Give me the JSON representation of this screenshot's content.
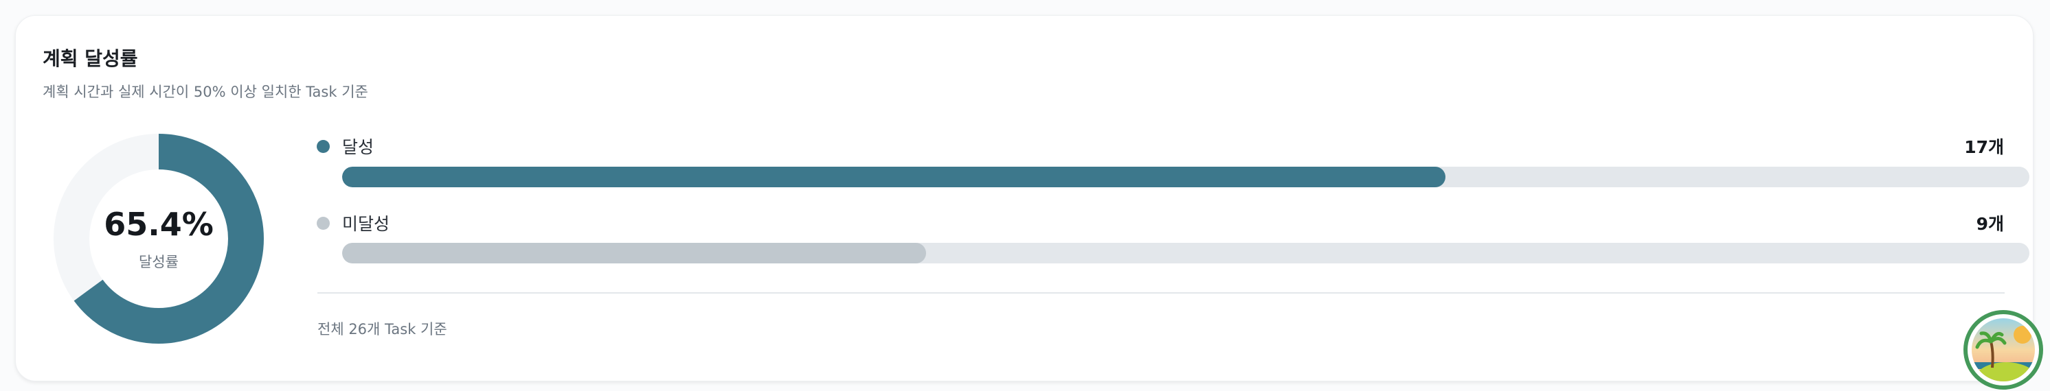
{
  "card": {
    "title": "계획 달성률",
    "subtitle": "계획 시간과 실제 시간이 50% 이상 일치한 Task 기준"
  },
  "donut": {
    "percent_label": "65.4%",
    "percent_value": 65.4,
    "caption": "달성률",
    "fill_color": "#3d788c",
    "track_color": "#f4f6f8"
  },
  "rows": [
    {
      "label": "달성",
      "count": "17개",
      "value": 17,
      "color": "#3d788c"
    },
    {
      "label": "미달성",
      "count": "9개",
      "value": 9,
      "color": "#c0c8ce"
    }
  ],
  "total": 26,
  "footer": "전체 26개 Task 기준",
  "avatar": {
    "icon": "tropical-island-avatar-icon"
  }
}
